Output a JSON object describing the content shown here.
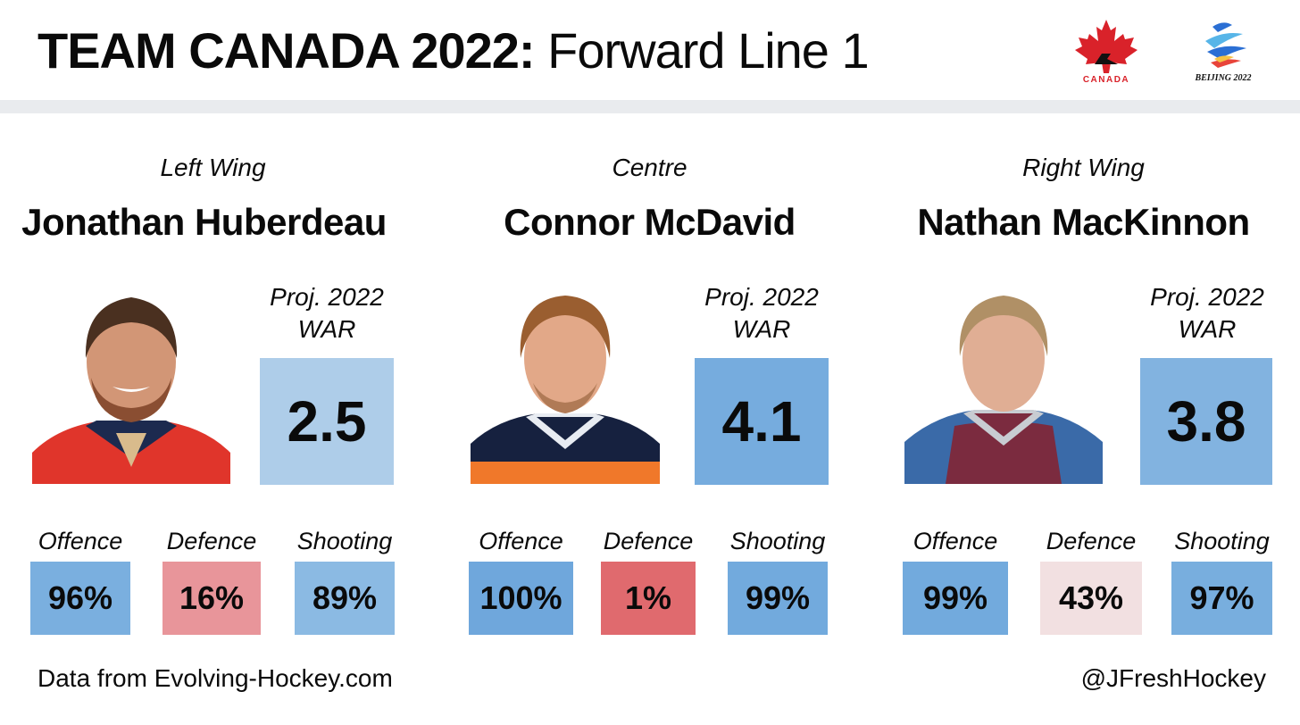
{
  "header": {
    "title_bold": "TEAM CANADA 2022:",
    "title_light": "Forward Line 1",
    "logos": [
      {
        "icon": "hockey-canada-maple-leaf-logo",
        "text": "CANADA"
      },
      {
        "icon": "beijing-2022-olympic-emblem",
        "text": "BEIJING 2022"
      }
    ]
  },
  "players": [
    {
      "position": "Left Wing",
      "name": "Jonathan Huberdeau",
      "proj_label_1": "Proj. 2022",
      "proj_label_2": "WAR",
      "war": "2.5",
      "war_color": "#aecde9",
      "photo_icon": "player-photo-panthers-red-jersey",
      "stats": [
        {
          "label": "Offence",
          "value": "96%",
          "color": "#7aafdf"
        },
        {
          "label": "Defence",
          "value": "16%",
          "color": "#e8959a"
        },
        {
          "label": "Shooting",
          "value": "89%",
          "color": "#8bbae3"
        }
      ]
    },
    {
      "position": "Centre",
      "name": "Connor McDavid",
      "proj_label_1": "Proj. 2022",
      "proj_label_2": "WAR",
      "war": "4.1",
      "war_color": "#76acde",
      "photo_icon": "player-photo-oilers-navy-jersey",
      "stats": [
        {
          "label": "Offence",
          "value": "100%",
          "color": "#6fa7dc"
        },
        {
          "label": "Defence",
          "value": "1%",
          "color": "#e06a6e"
        },
        {
          "label": "Shooting",
          "value": "99%",
          "color": "#72aadd"
        }
      ]
    },
    {
      "position": "Right Wing",
      "name": "Nathan MacKinnon",
      "proj_label_1": "Proj. 2022",
      "proj_label_2": "WAR",
      "war": "3.8",
      "war_color": "#82b3e0",
      "photo_icon": "player-photo-avalanche-burgundy-jersey",
      "stats": [
        {
          "label": "Offence",
          "value": "99%",
          "color": "#72aadd"
        },
        {
          "label": "Defence",
          "value": "43%",
          "color": "#f2e0e1"
        },
        {
          "label": "Shooting",
          "value": "97%",
          "color": "#78aede"
        }
      ]
    }
  ],
  "footer": {
    "source": "Data from Evolving-Hockey.com",
    "handle": "@JFreshHockey"
  }
}
